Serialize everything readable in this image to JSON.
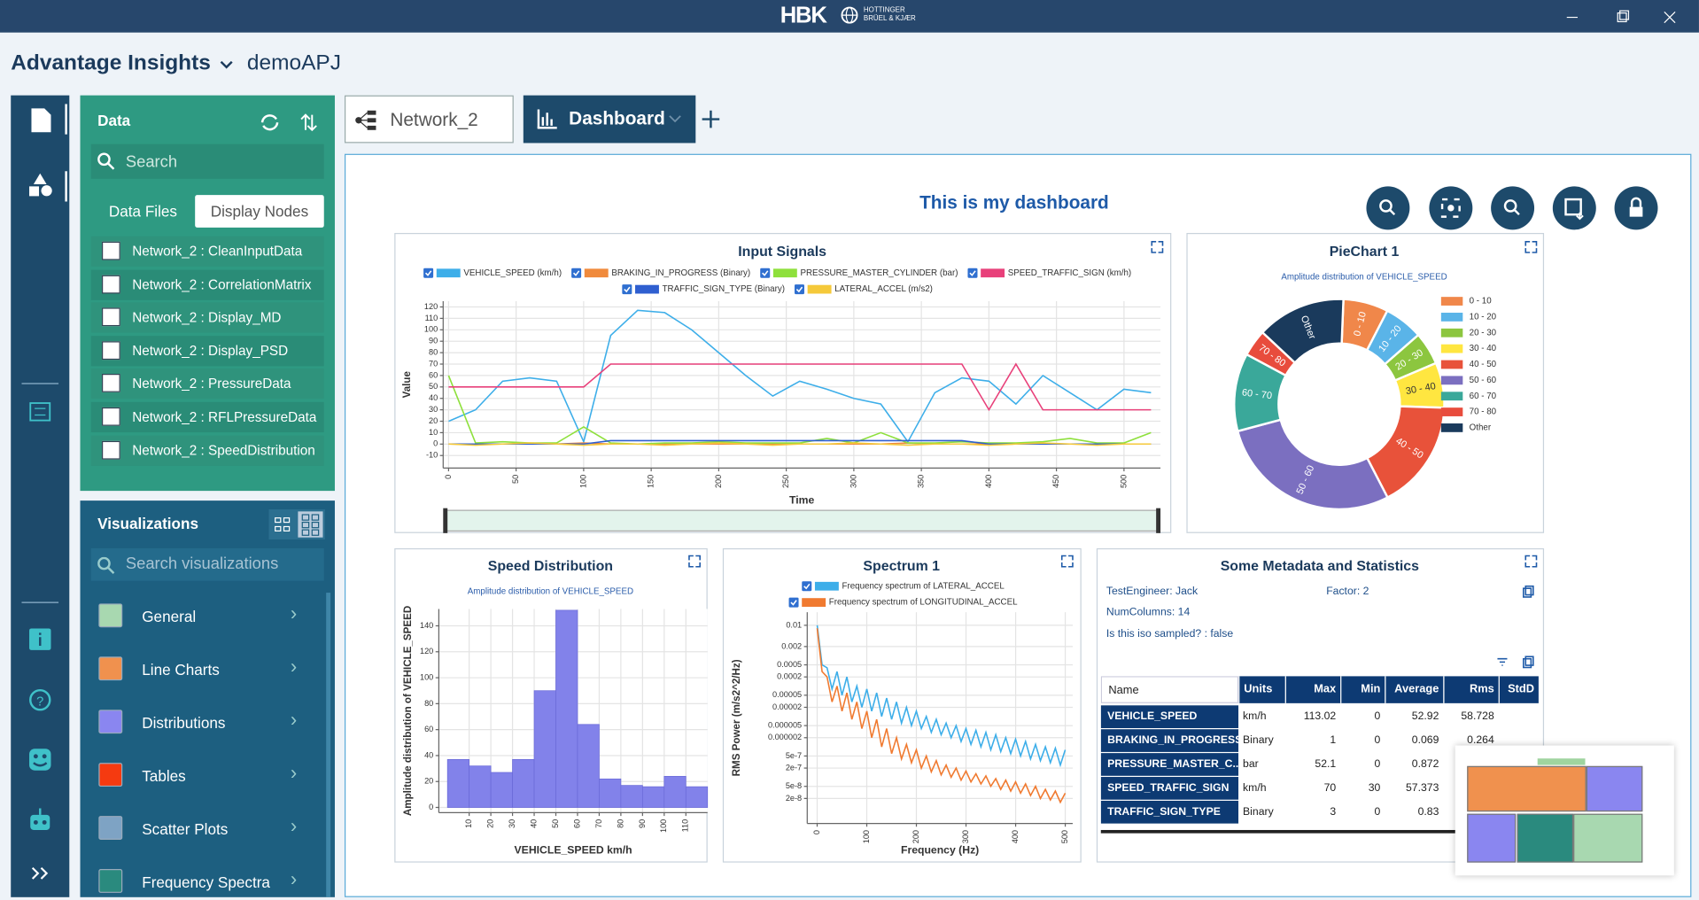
{
  "window": {
    "brand": "HBK",
    "brand_sub": [
      "HOTTINGER",
      "BRÜEL & KJÆR"
    ]
  },
  "header": {
    "app": "Advantage Insights",
    "project": "demoAPJ"
  },
  "data_panel": {
    "title": "Data",
    "search": "Search",
    "tabs": [
      "Data Files",
      "Display Nodes"
    ],
    "items": [
      "Network_2 : CleanInputData",
      "Network_2 : CorrelationMatrix",
      "Network_2 : Display_MD",
      "Network_2 : Display_PSD",
      "Network_2 : PressureData",
      "Network_2 : RFLPressureData",
      "Network_2 : SpeedDistribution"
    ]
  },
  "viz_panel": {
    "title": "Visualizations",
    "search": "Search visualizations",
    "items": [
      {
        "label": "General",
        "color": "#a8d8b0"
      },
      {
        "label": "Line Charts",
        "color": "#f0914e"
      },
      {
        "label": "Distributions",
        "color": "#8a86f0"
      },
      {
        "label": "Tables",
        "color": "#f53a10"
      },
      {
        "label": "Scatter Plots",
        "color": "#7ea3c4"
      },
      {
        "label": "Frequency Spectra",
        "color": "#2a8a7e"
      }
    ]
  },
  "tabs": [
    "Network_2",
    "Dashboard"
  ],
  "dashboard": {
    "title": "This is my dashboard"
  },
  "chart_data": [
    {
      "type": "line",
      "title": "Input Signals",
      "xlabel": "Time",
      "ylabel": "Value",
      "grid": true,
      "x": [
        0,
        20,
        40,
        60,
        80,
        100,
        120,
        140,
        160,
        180,
        200,
        220,
        240,
        260,
        280,
        300,
        320,
        340,
        360,
        380,
        400,
        420,
        440,
        460,
        480,
        500,
        520
      ],
      "xlim": [
        -4,
        527
      ],
      "xticks": [
        0,
        50,
        100,
        150,
        200,
        250,
        300,
        350,
        400,
        450,
        500
      ],
      "ylim": [
        -21,
        125
      ],
      "yticks": [
        -10,
        0,
        10,
        20,
        30,
        40,
        50,
        60,
        70,
        80,
        90,
        100,
        110,
        120
      ],
      "series": [
        {
          "name": "VEHICLE_SPEED (km/h)",
          "color": "#3daee9",
          "values": [
            20,
            30,
            55,
            58,
            55,
            2,
            95,
            117,
            115,
            100,
            80,
            60,
            42,
            55,
            48,
            40,
            35,
            2,
            45,
            58,
            55,
            35,
            60,
            45,
            30,
            48,
            45
          ]
        },
        {
          "name": "BRAKING_IN_PROGRESS (Binary)",
          "color": "#f08a3c",
          "values": [
            0,
            0,
            0,
            0,
            0,
            1,
            0,
            0,
            0,
            0,
            0,
            0,
            0,
            0,
            0,
            0,
            0,
            1,
            0,
            0,
            0,
            0,
            0,
            0,
            0,
            0,
            0
          ]
        },
        {
          "name": "PRESSURE_MASTER_CYLINDER (bar)",
          "color": "#8ee03c",
          "values": [
            60,
            1,
            2,
            1,
            1,
            15,
            1,
            0,
            1,
            1,
            2,
            1,
            1,
            1,
            5,
            1,
            10,
            1,
            1,
            2,
            1,
            1,
            2,
            5,
            1,
            1,
            10
          ]
        },
        {
          "name": "SPEED_TRAFFIC_SIGN (km/h)",
          "color": "#e8407a",
          "values": [
            50,
            50,
            50,
            50,
            50,
            50,
            70,
            70,
            70,
            70,
            70,
            70,
            70,
            70,
            70,
            70,
            70,
            70,
            70,
            70,
            30,
            70,
            30,
            30,
            30,
            30,
            30
          ]
        },
        {
          "name": "TRAFFIC_SIGN_TYPE (Binary)",
          "color": "#2f5fd0",
          "values": [
            0,
            0,
            0,
            0,
            0,
            0,
            3,
            3,
            3,
            3,
            3,
            3,
            3,
            3,
            3,
            3,
            3,
            3,
            3,
            3,
            0,
            0,
            0,
            0,
            0,
            0,
            0
          ]
        },
        {
          "name": "LATERAL_ACCEL (m/s2)",
          "color": "#f5c93a",
          "values": [
            0,
            -1,
            0,
            1,
            0,
            -1,
            0,
            0,
            -1,
            0,
            1,
            0,
            -1,
            0,
            0,
            1,
            0,
            -1,
            0,
            0,
            -1,
            0,
            1,
            0,
            -1,
            0,
            0
          ]
        }
      ]
    },
    {
      "type": "pie",
      "title": "PieChart 1",
      "subtitle": "Amplitude distribution of VEHICLE_SPEED",
      "legend": "right",
      "categories": [
        "0 - 10",
        "10 - 20",
        "20 - 30",
        "30 - 40",
        "40 - 50",
        "50 - 60",
        "60 - 70",
        "70 - 80",
        "Other"
      ],
      "values": [
        37,
        32,
        27,
        37,
        90,
        152,
        64,
        22,
        73
      ],
      "colors": [
        "#f0874a",
        "#5ab4e8",
        "#8cc63f",
        "#ffe640",
        "#e8523a",
        "#7b6fc0",
        "#3aa89a",
        "#e84c3d",
        "#1a3a5c"
      ]
    },
    {
      "type": "histogram",
      "title": "Speed Distribution",
      "subtitle": "Amplitude distribution of VEHICLE_SPEED",
      "xlabel": "VEHICLE_SPEED km/h",
      "ylabel": "Amplitude distribution of VEHICLE_SPEED",
      "grid": true,
      "color": "#8282ea",
      "bins": [
        0,
        10,
        20,
        30,
        40,
        50,
        60,
        70,
        80,
        90,
        100,
        110,
        120
      ],
      "values": [
        37,
        32,
        27,
        37,
        90,
        152,
        64,
        22,
        17,
        16,
        24,
        16
      ],
      "xlim": [
        -4,
        120
      ],
      "xticks": [
        10,
        20,
        30,
        40,
        50,
        60,
        70,
        80,
        90,
        100,
        110
      ],
      "ylim": [
        -4,
        153
      ],
      "yticks": [
        0,
        20,
        40,
        60,
        80,
        100,
        120,
        140
      ]
    },
    {
      "type": "line",
      "title": "Spectrum 1",
      "xlabel": "Frequency (Hz)",
      "ylabel": "RMS Power (m/s2^2/Hz)",
      "grid": true,
      "log_y": true,
      "x": [
        0,
        10,
        20,
        30,
        40,
        50,
        60,
        70,
        80,
        90,
        100,
        110,
        120,
        130,
        140,
        150,
        160,
        170,
        180,
        190,
        200,
        210,
        220,
        230,
        240,
        250,
        260,
        270,
        280,
        290,
        300,
        310,
        320,
        330,
        340,
        350,
        360,
        370,
        380,
        390,
        400,
        410,
        420,
        430,
        440,
        450,
        460,
        470,
        480,
        490,
        500
      ],
      "xlim": [
        -20,
        515
      ],
      "xticks": [
        0,
        100,
        200,
        300,
        400,
        500
      ],
      "ylim": [
        3e-09,
        0.027
      ],
      "yticks": [
        0.01,
        0.002,
        0.0005,
        0.0002,
        5e-05,
        2e-05,
        5e-06,
        2e-06,
        5e-07,
        2e-07,
        5e-08,
        2e-08
      ],
      "series": [
        {
          "name": "Frequency spectrum of LATERAL_ACCEL",
          "color": "#3daee9",
          "values": [
            0.01,
            0.0005,
            0.0004,
            8e-05,
            0.0003,
            5e-05,
            0.0002,
            3e-05,
            0.0001,
            2e-05,
            8e-05,
            1.5e-05,
            6e-05,
            1e-05,
            4e-05,
            8e-06,
            3e-05,
            6e-06,
            2e-05,
            5e-06,
            1.5e-05,
            4e-06,
            1e-05,
            3e-06,
            8e-06,
            2.5e-06,
            6e-06,
            2e-06,
            5e-06,
            1.5e-06,
            4e-06,
            1.2e-06,
            3.5e-06,
            1e-06,
            3e-06,
            8e-07,
            2.5e-06,
            7e-07,
            2e-06,
            6e-07,
            1.8e-06,
            5e-07,
            1.5e-06,
            4e-07,
            1.2e-06,
            3.5e-07,
            1e-06,
            3e-07,
            9e-07,
            2.5e-07,
            8e-07
          ]
        },
        {
          "name": "Frequency spectrum of LONGITUDINAL_ACCEL",
          "color": "#f07a30",
          "values": [
            0.008,
            0.0003,
            0.0002,
            3e-05,
            0.0001,
            1.5e-05,
            6e-05,
            8e-06,
            3e-05,
            4e-06,
            1.5e-05,
            2e-06,
            8e-06,
            1e-06,
            4e-06,
            6e-07,
            2e-06,
            4e-07,
            1.2e-06,
            3e-07,
            8e-07,
            2e-07,
            5e-07,
            1.5e-07,
            3.5e-07,
            1.2e-07,
            2.5e-07,
            1e-07,
            2e-07,
            8e-08,
            1.6e-07,
            7e-08,
            1.3e-07,
            6e-08,
            1.1e-07,
            5e-08,
            9e-08,
            4e-08,
            8e-08,
            3.5e-08,
            7e-08,
            3e-08,
            6e-08,
            2.5e-08,
            5e-08,
            2e-08,
            4e-08,
            1.8e-08,
            3.5e-08,
            1.5e-08,
            3e-08
          ]
        }
      ]
    }
  ],
  "metadata": {
    "title": "Some Metadata and Statistics",
    "fields": [
      "TestEngineer: Jack",
      "Factor: 2",
      "NumColumns: 14",
      "Is this iso sampled? : false"
    ],
    "table": {
      "columns": [
        "Name",
        "Units",
        "Max",
        "Min",
        "Average",
        "Rms",
        "StdD"
      ],
      "rows": [
        [
          "VEHICLE_SPEED",
          "km/h",
          "113.02",
          "0",
          "52.92",
          "58.728"
        ],
        [
          "BRAKING_IN_PROGRESS",
          "Binary",
          "1",
          "0",
          "0.069",
          "0.264"
        ],
        [
          "PRESSURE_MASTER_C...",
          "bar",
          "52.1",
          "0",
          "0.872"
        ],
        [
          "SPEED_TRAFFIC_SIGN",
          "km/h",
          "70",
          "30",
          "57.373"
        ],
        [
          "TRAFFIC_SIGN_TYPE",
          "Binary",
          "3",
          "0",
          "0.83"
        ]
      ]
    }
  }
}
